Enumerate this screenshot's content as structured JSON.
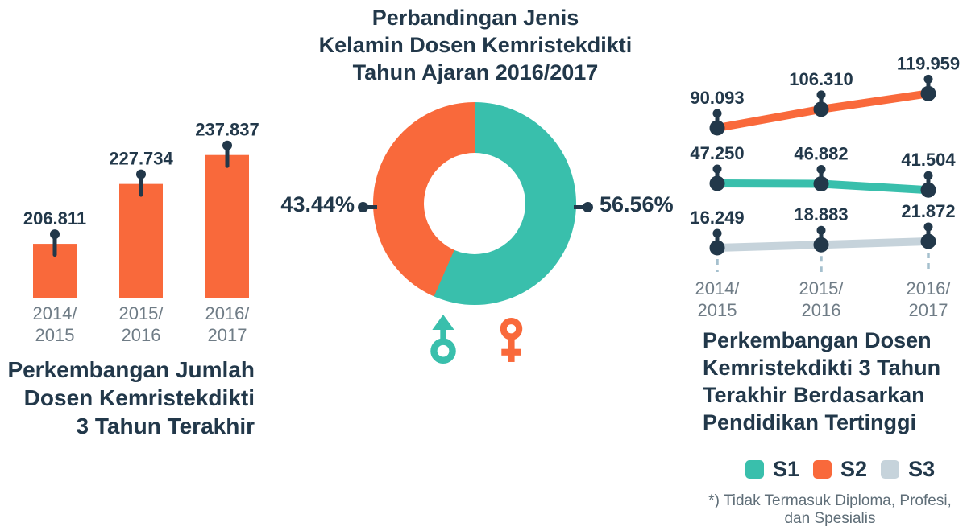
{
  "page": {
    "background": "#ffffff"
  },
  "colors": {
    "navy": "#22384A",
    "orange": "#F9693B",
    "teal": "#39BFAC",
    "s3_gray": "#C6D3DB",
    "axis_text_gray": "#6F7C86",
    "dash_gray_blue": "#A5C0CE",
    "footnote_gray": "#5F6E78"
  },
  "chart_data": [
    {
      "id": "dosen-total-bars",
      "type": "bar",
      "title": "Perkembangan Jumlah\nDosen Kemristekdikti\n3 Tahun Terakhir",
      "categories": [
        "2014/\n2015",
        "2015/\n2016",
        "2016/\n2017"
      ],
      "values": [
        206811,
        227734,
        237837
      ],
      "value_labels": [
        "206.811",
        "227.734",
        "237.837"
      ],
      "ylim": [
        188000,
        240000
      ],
      "grid": false,
      "bar_color": "#F9693B",
      "marker_color": "#22384A"
    },
    {
      "id": "gender-donut",
      "type": "pie",
      "donut": true,
      "title": "Perbandingan Jenis\nKelamin Dosen Kemristekdikti\nTahun Ajaran 2016/2017",
      "start_angle_deg": 0,
      "direction": "clockwise",
      "slices": [
        {
          "name": "male",
          "value": 56.56,
          "label": "56.56%",
          "color": "#39BFAC",
          "label_side": "right"
        },
        {
          "name": "female",
          "value": 43.44,
          "label": "43.44%",
          "color": "#F9693B",
          "label_side": "left"
        }
      ]
    },
    {
      "id": "dosen-pendidikan-lines",
      "type": "line",
      "title": "Perkembangan Dosen\nKemristekdikti 3 Tahun\nTerakhir Berdasarkan\nPendidikan Tertinggi",
      "categories": [
        "2014/\n2015",
        "2015/\n2016",
        "2016/\n2017"
      ],
      "series": [
        {
          "name": "S2",
          "color": "#F9693B",
          "values": [
            90093,
            106310,
            119959
          ],
          "value_labels": [
            "90.093",
            "106.310",
            "119.959"
          ]
        },
        {
          "name": "S1",
          "color": "#39BFAC",
          "values": [
            47250,
            46882,
            41504
          ],
          "value_labels": [
            "47.250",
            "46.882",
            "41.504"
          ]
        },
        {
          "name": "S3",
          "color": "#C6D3DB",
          "values": [
            16249,
            18883,
            21872
          ],
          "value_labels": [
            "16.249",
            "18.883",
            "21.872"
          ]
        }
      ],
      "legend": [
        "S1",
        "S2",
        "S3"
      ],
      "legend_position": "bottom",
      "grid": false,
      "marker_color": "#22384A",
      "footnote": "*) Tidak Termasuk Diploma, Profesi,\ndan Spesialis"
    }
  ]
}
